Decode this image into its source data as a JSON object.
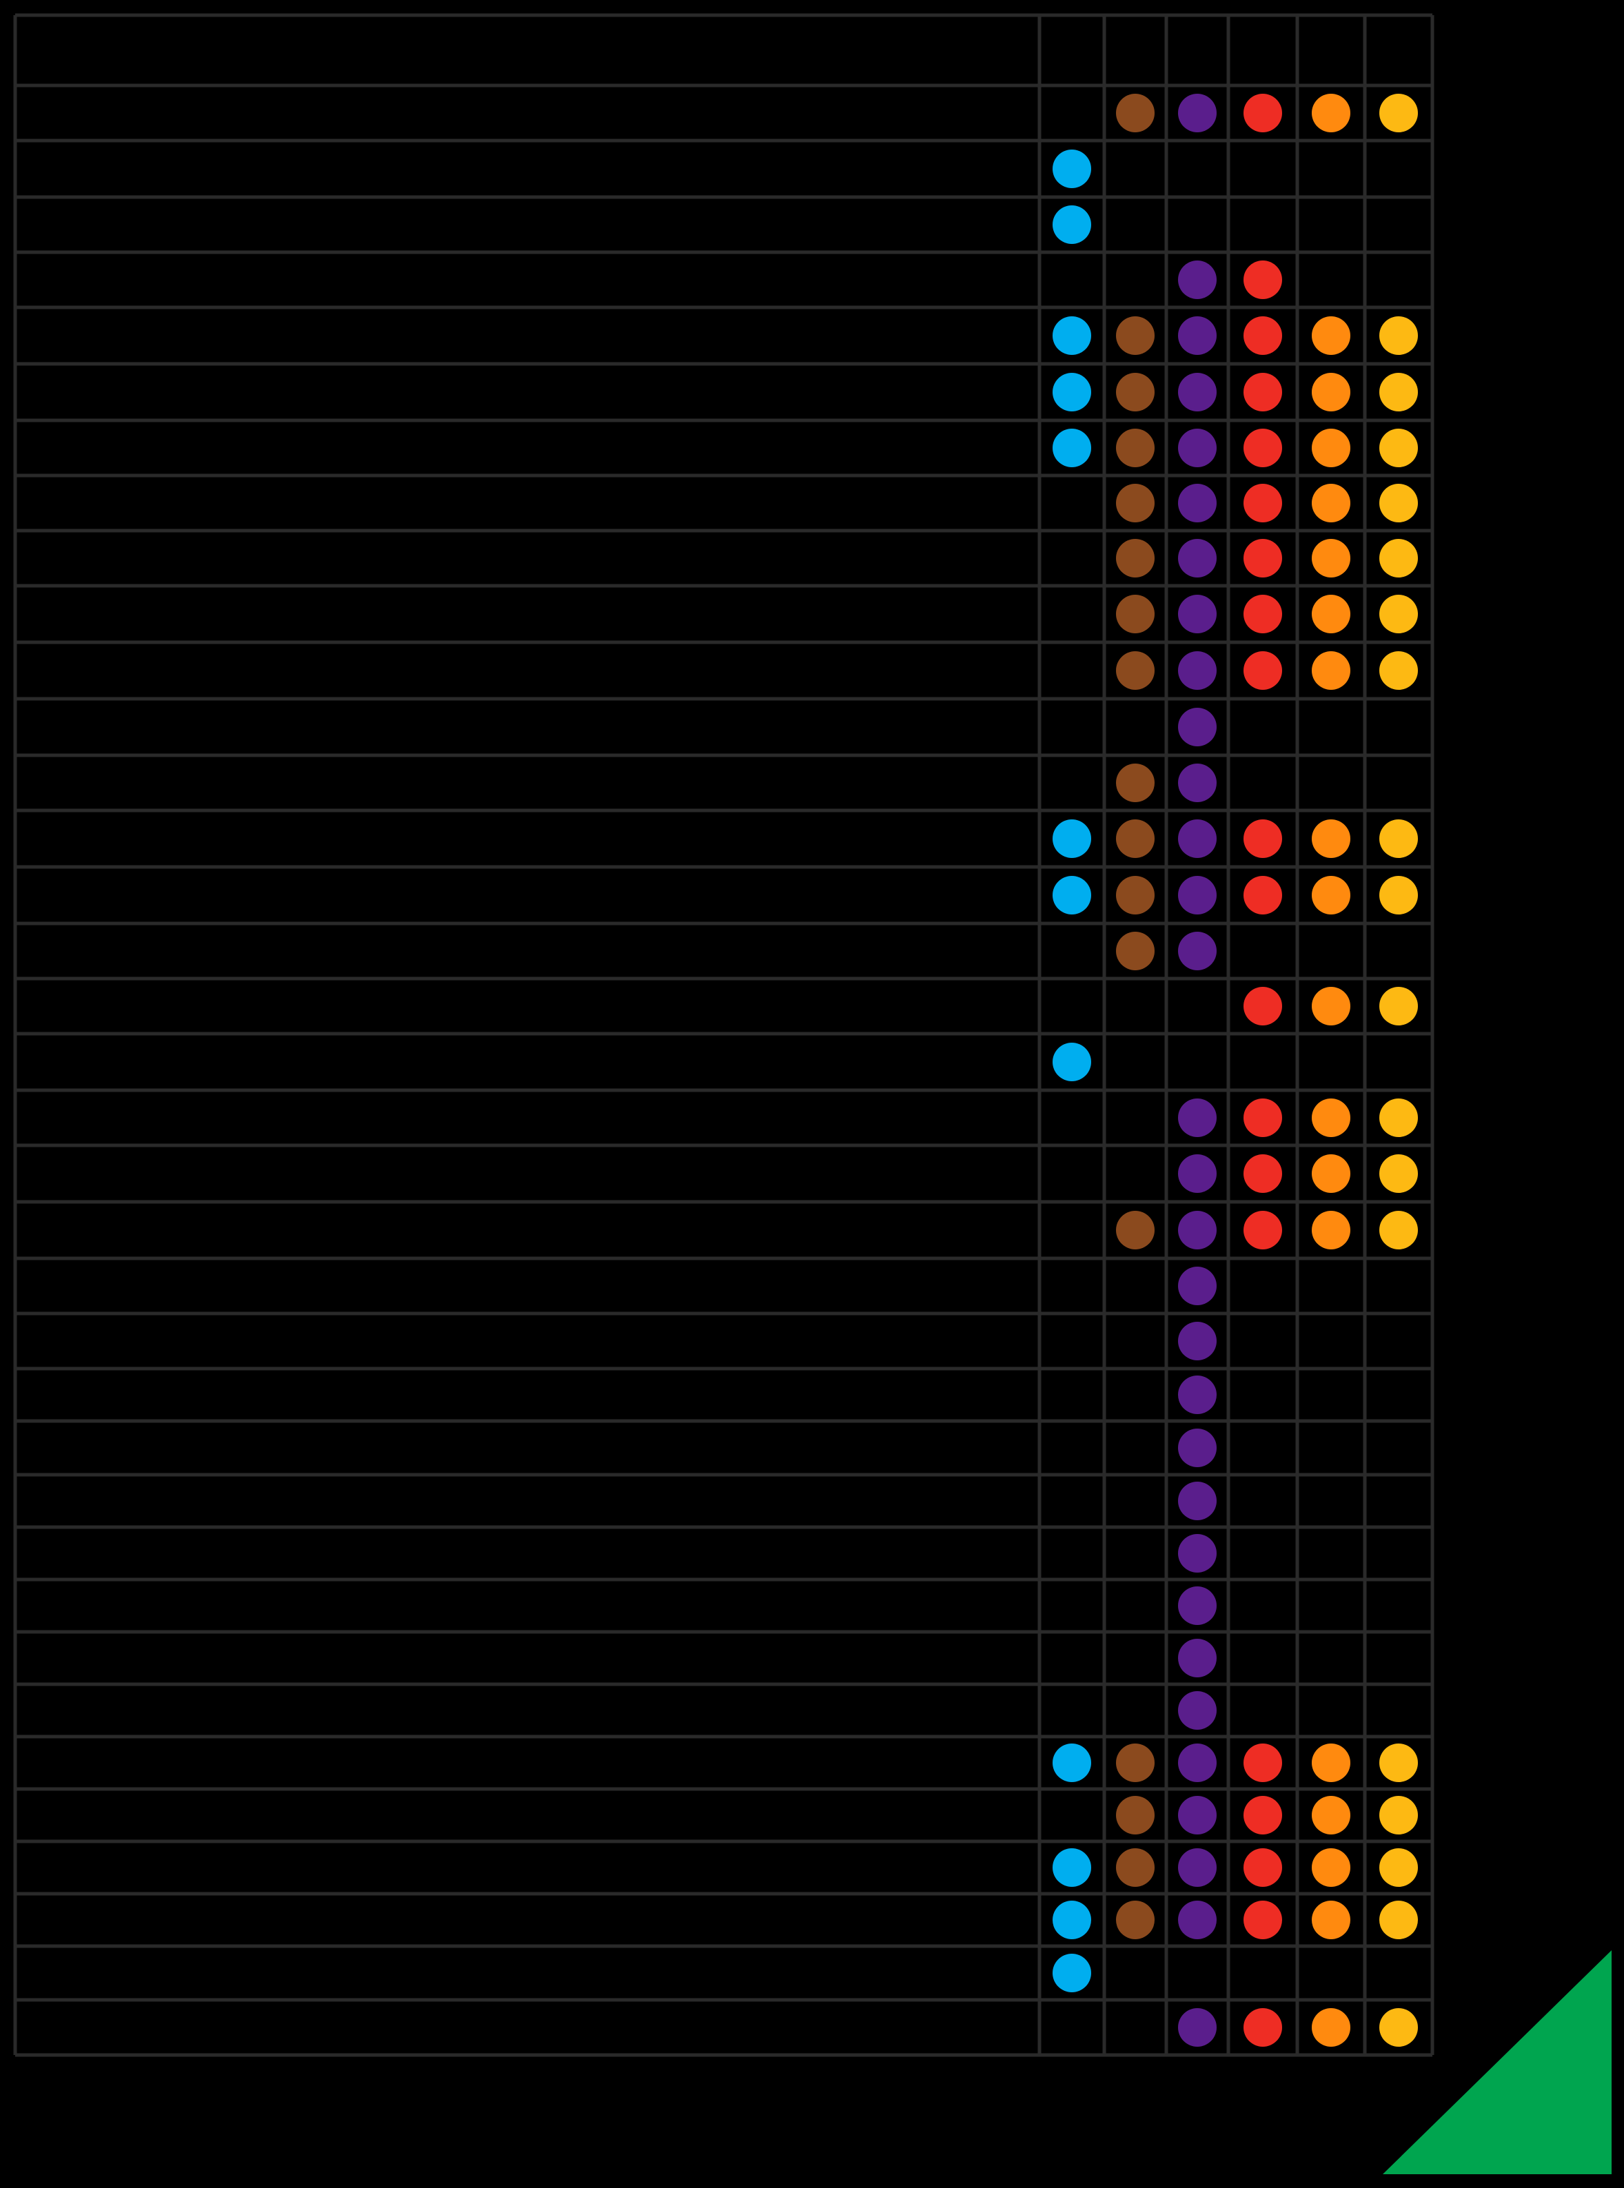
{
  "chart_data": {
    "type": "table",
    "title": "",
    "row_labels": [],
    "column_labels": [],
    "series": [
      {
        "color": "#00aeef"
      },
      {
        "color": "#8b4a1e"
      },
      {
        "color": "#5a1e8c"
      },
      {
        "color": "#ee2d24"
      },
      {
        "color": "#ff8a0f"
      },
      {
        "color": "#fdb913"
      }
    ],
    "matrix": [
      [
        0,
        0,
        0,
        0,
        0,
        0
      ],
      [
        0,
        1,
        1,
        1,
        1,
        1
      ],
      [
        1,
        0,
        0,
        0,
        0,
        0
      ],
      [
        1,
        0,
        0,
        0,
        0,
        0
      ],
      [
        0,
        0,
        1,
        1,
        0,
        0
      ],
      [
        1,
        1,
        1,
        1,
        1,
        1
      ],
      [
        1,
        1,
        1,
        1,
        1,
        1
      ],
      [
        1,
        1,
        1,
        1,
        1,
        1
      ],
      [
        0,
        1,
        1,
        1,
        1,
        1
      ],
      [
        0,
        1,
        1,
        1,
        1,
        1
      ],
      [
        0,
        1,
        1,
        1,
        1,
        1
      ],
      [
        0,
        1,
        1,
        1,
        1,
        1
      ],
      [
        0,
        0,
        1,
        0,
        0,
        0
      ],
      [
        0,
        1,
        1,
        0,
        0,
        0
      ],
      [
        1,
        1,
        1,
        1,
        1,
        1
      ],
      [
        1,
        1,
        1,
        1,
        1,
        1
      ],
      [
        0,
        1,
        1,
        0,
        0,
        0
      ],
      [
        0,
        0,
        0,
        1,
        1,
        1
      ],
      [
        1,
        0,
        0,
        0,
        0,
        0
      ],
      [
        0,
        0,
        1,
        1,
        1,
        1
      ],
      [
        0,
        0,
        1,
        1,
        1,
        1
      ],
      [
        0,
        1,
        1,
        1,
        1,
        1
      ],
      [
        0,
        0,
        1,
        0,
        0,
        0
      ],
      [
        0,
        0,
        1,
        0,
        0,
        0
      ],
      [
        0,
        0,
        1,
        0,
        0,
        0
      ],
      [
        0,
        0,
        1,
        0,
        0,
        0
      ],
      [
        0,
        0,
        1,
        0,
        0,
        0
      ],
      [
        0,
        0,
        1,
        0,
        0,
        0
      ],
      [
        0,
        0,
        1,
        0,
        0,
        0
      ],
      [
        0,
        0,
        1,
        0,
        0,
        0
      ],
      [
        0,
        0,
        1,
        0,
        0,
        0
      ],
      [
        1,
        1,
        1,
        1,
        1,
        1
      ],
      [
        0,
        1,
        1,
        1,
        1,
        1
      ],
      [
        1,
        1,
        1,
        1,
        1,
        1
      ],
      [
        1,
        1,
        1,
        1,
        1,
        1
      ],
      [
        1,
        0,
        0,
        0,
        0,
        0
      ],
      [
        0,
        0,
        1,
        1,
        1,
        1
      ]
    ],
    "grid": true,
    "corner_marker_color": "#00a54f"
  },
  "colors": {
    "background": "#000000",
    "grid_line": "#2a2a2a"
  }
}
